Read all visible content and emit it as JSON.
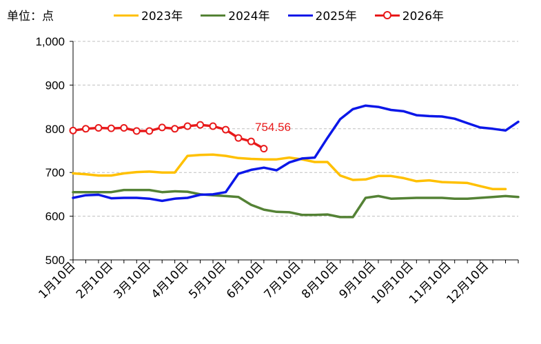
{
  "chart_data": {
    "type": "line",
    "unit_label": "单位：点",
    "ylim": [
      500,
      1000
    ],
    "yticks": [
      "500",
      "600",
      "700",
      "800",
      "900",
      "1,000"
    ],
    "x_tick_labels": [
      "1月10日",
      "2月10日",
      "3月10日",
      "4月10日",
      "5月10日",
      "6月10日",
      "7月10日",
      "8月10日",
      "9月10日",
      "10月10日",
      "11月10日",
      "12月10日"
    ],
    "grid": true,
    "legend_position": "top",
    "annotation": {
      "text": "754.56",
      "series": "2026年",
      "color": "#e8191a"
    },
    "series": [
      {
        "name": "2023年",
        "color": "#ffc000",
        "markers": false,
        "values": [
          698,
          696,
          693,
          693,
          698,
          701,
          702,
          700,
          700,
          738,
          740,
          741,
          738,
          733,
          731,
          730,
          730,
          734,
          730,
          724,
          724,
          693,
          683,
          684,
          692,
          692,
          687,
          680,
          682,
          678,
          677,
          676,
          669,
          662,
          662
        ]
      },
      {
        "name": "2024年",
        "color": "#548235",
        "markers": false,
        "values": [
          655,
          655,
          655,
          655,
          660,
          660,
          660,
          655,
          657,
          656,
          650,
          648,
          646,
          644,
          626,
          615,
          610,
          609,
          603,
          603,
          604,
          598,
          598,
          642,
          646,
          640,
          641,
          642,
          642,
          642,
          640,
          640,
          642,
          644,
          646,
          644
        ]
      },
      {
        "name": "2025年",
        "color": "#0b17e8",
        "markers": false,
        "values": [
          642,
          648,
          649,
          641,
          642,
          642,
          640,
          635,
          640,
          642,
          649,
          650,
          655,
          697,
          706,
          711,
          705,
          723,
          732,
          734,
          779,
          822,
          845,
          853,
          850,
          843,
          840,
          831,
          829,
          828,
          823,
          813,
          803,
          800,
          796,
          816
        ]
      },
      {
        "name": "2026年",
        "color": "#e8191a",
        "markers": true,
        "values": [
          796,
          800,
          802,
          801,
          802,
          795,
          795,
          803,
          800,
          806,
          809,
          806,
          798,
          779,
          771,
          754.56
        ]
      }
    ]
  }
}
